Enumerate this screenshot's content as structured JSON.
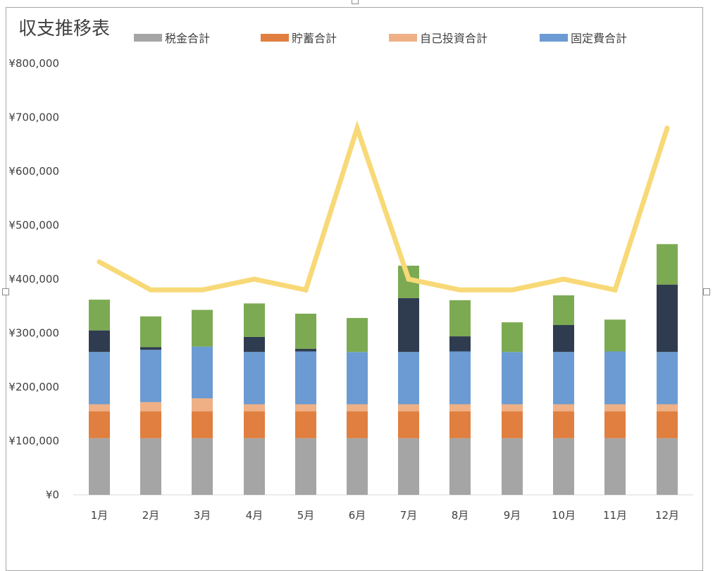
{
  "chart_data": {
    "type": "bar",
    "title": "収支推移表",
    "categories": [
      "1月",
      "2月",
      "3月",
      "4月",
      "5月",
      "6月",
      "7月",
      "8月",
      "9月",
      "10月",
      "11月",
      "12月"
    ],
    "ylim": [
      0,
      800000
    ],
    "yticks": [
      "¥0",
      "¥100,000",
      "¥200,000",
      "¥300,000",
      "¥400,000",
      "¥500,000",
      "¥600,000",
      "¥700,000",
      "¥800,000"
    ],
    "ytick_values": [
      0,
      100000,
      200000,
      300000,
      400000,
      500000,
      600000,
      700000,
      800000
    ],
    "grid": false,
    "legend_position": "top",
    "series": [
      {
        "name": "税金合計",
        "kind": "stacked-bar",
        "color": "#a5a5a5",
        "values": [
          105000,
          105000,
          105000,
          105000,
          105000,
          105000,
          105000,
          105000,
          105000,
          105000,
          105000,
          105000
        ]
      },
      {
        "name": "貯蓄合計",
        "kind": "stacked-bar",
        "color": "#e07f3f",
        "values": [
          50000,
          50000,
          50000,
          50000,
          50000,
          50000,
          50000,
          50000,
          50000,
          50000,
          50000,
          50000
        ]
      },
      {
        "name": "自己投資合計",
        "kind": "stacked-bar",
        "color": "#efb086",
        "values": [
          13000,
          17000,
          24000,
          13000,
          13000,
          13000,
          13000,
          13000,
          13000,
          13000,
          13000,
          13000
        ]
      },
      {
        "name": "固定費合計",
        "kind": "stacked-bar",
        "color": "#6b9bd2",
        "values": [
          97000,
          97000,
          96000,
          97000,
          98000,
          97000,
          97000,
          98000,
          97000,
          97000,
          98000,
          97000
        ]
      },
      {
        "kind": "stacked-bar",
        "color": "#2f3c4f",
        "values": [
          40000,
          5000,
          0,
          28000,
          5000,
          0,
          100000,
          28000,
          0,
          50000,
          0,
          125000
        ]
      },
      {
        "kind": "stacked-bar",
        "color": "#7caa52",
        "values": [
          57000,
          57000,
          68000,
          62000,
          65000,
          63000,
          60000,
          67000,
          55000,
          55000,
          59000,
          75000
        ]
      },
      {
        "kind": "line",
        "color": "#f8d977",
        "values": [
          432000,
          380000,
          380000,
          400000,
          380000,
          680000,
          400000,
          380000,
          380000,
          400000,
          380000,
          680000
        ]
      }
    ]
  }
}
